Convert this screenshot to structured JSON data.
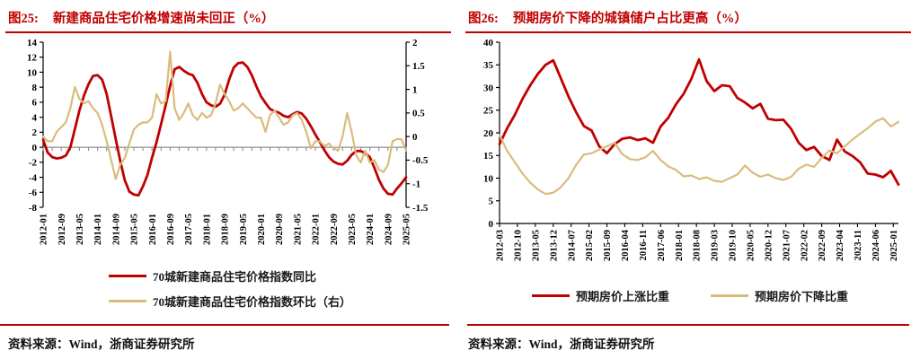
{
  "theme": {
    "accent_red": "#c00000",
    "series_red": "#c00000",
    "series_tan": "#d9bc7c",
    "zero_line_gray": "#8f8f8f",
    "text_black": "#1a1a1a"
  },
  "figures": [
    {
      "label": "图25:",
      "title": "新建商品住宅价格增速尚未回正（%）",
      "source": "资料来源：Wind，浙商证券研究所"
    },
    {
      "label": "图26:",
      "title": "预期房价下降的城镇储户占比更高（%）",
      "source": "资料来源：Wind，浙商证券研究所"
    }
  ],
  "chart_data": [
    {
      "type": "line",
      "title": "新建商品住宅价格增速尚未回正（%）",
      "x_start": "2012-01",
      "x_total_months": 160,
      "sample_step_months": 2,
      "x_tick_interval_months": 8,
      "x_tick_labels": [
        "2012-01",
        "2012-09",
        "2013-05",
        "2014-01",
        "2014-09",
        "2015-05",
        "2016-01",
        "2016-09",
        "2017-05",
        "2018-01",
        "2018-09",
        "2019-05",
        "2020-01",
        "2020-09",
        "2021-05",
        "2022-01",
        "2022-09",
        "2023-05",
        "2024-01",
        "2024-09",
        "2025-05"
      ],
      "y_left": {
        "min": -8,
        "max": 14,
        "tick_labels": [
          "14",
          "12",
          "10",
          "8",
          "6",
          "4",
          "2",
          "0",
          "-2",
          "-4",
          "-6",
          "-8"
        ]
      },
      "y_right": {
        "min": -1.5,
        "max": 2,
        "tick_labels": [
          "2",
          "1.5",
          "1",
          "0.5",
          "0",
          "-0.5",
          "-1",
          "-1.5"
        ]
      },
      "x_axis_at_left_value": 0,
      "series": [
        {
          "name": "70城新建商品住宅价格指数同比",
          "color": "#c00000",
          "axis": "left",
          "values": [
            1.0,
            -0.7,
            -1.3,
            -1.5,
            -1.4,
            -1.1,
            0.0,
            2.4,
            4.9,
            6.9,
            8.4,
            9.5,
            9.6,
            9.0,
            7.1,
            4.1,
            1.1,
            -1.8,
            -4.4,
            -5.9,
            -6.3,
            -6.4,
            -5.2,
            -3.7,
            -1.4,
            0.7,
            3.1,
            5.6,
            8.2,
            10.4,
            10.7,
            10.2,
            9.8,
            9.6,
            8.6,
            7.1,
            6.0,
            5.6,
            5.4,
            5.8,
            7.0,
            9.0,
            10.6,
            11.2,
            11.3,
            10.7,
            9.6,
            8.1,
            6.8,
            5.9,
            5.1,
            4.8,
            4.6,
            4.2,
            4.0,
            4.4,
            4.7,
            4.5,
            3.8,
            2.8,
            1.7,
            0.7,
            -0.4,
            -1.3,
            -1.9,
            -2.2,
            -2.3,
            -1.8,
            -1.0,
            -0.5,
            -0.5,
            -0.8,
            -1.3,
            -2.7,
            -4.3,
            -5.5,
            -6.2,
            -6.3,
            -5.5,
            -4.8,
            -4.0
          ]
        },
        {
          "name": "70城新建商品住宅价格指数环比（右）",
          "color": "#d9bc7c",
          "axis": "right",
          "values": [
            0.0,
            -0.1,
            -0.1,
            0.1,
            0.2,
            0.3,
            0.6,
            1.05,
            0.8,
            0.7,
            0.75,
            0.6,
            0.5,
            0.25,
            -0.1,
            -0.5,
            -0.9,
            -0.6,
            -0.45,
            -0.15,
            0.15,
            0.25,
            0.3,
            0.3,
            0.4,
            0.9,
            0.7,
            0.75,
            1.8,
            0.6,
            0.35,
            0.5,
            0.7,
            0.45,
            0.35,
            0.5,
            0.4,
            0.45,
            0.7,
            1.1,
            0.9,
            0.75,
            0.55,
            0.6,
            0.7,
            0.6,
            0.5,
            0.4,
            0.4,
            0.1,
            0.45,
            0.55,
            0.4,
            0.25,
            0.3,
            0.45,
            0.5,
            0.35,
            0.1,
            -0.25,
            -0.1,
            -0.1,
            -0.2,
            -0.15,
            -0.25,
            -0.3,
            0.0,
            0.5,
            0.1,
            -0.4,
            -0.55,
            -0.3,
            -0.55,
            -0.5,
            -0.7,
            -0.75,
            -0.6,
            -0.1,
            -0.05,
            -0.06,
            -0.3
          ]
        }
      ]
    },
    {
      "type": "line",
      "title": "预期房价下降的城镇储户占比更高（%）",
      "x_start": "2012-03",
      "x_total_months": 156,
      "sample_step_months": 3,
      "x_tick_interval_months": 7,
      "x_tick_labels": [
        "2012-03",
        "2012-10",
        "2013-05",
        "2013-12",
        "2014-07",
        "2015-02",
        "2015-09",
        "2016-04",
        "2016-11",
        "2017-06",
        "2018-01",
        "2018-08",
        "2019-03",
        "2019-10",
        "2020-05",
        "2020-12",
        "2021-07",
        "2022-02",
        "2022-09",
        "2023-04",
        "2023-11",
        "2024-06",
        "2025-01"
      ],
      "y_left": {
        "min": 0,
        "max": 40,
        "tick_labels": [
          "40",
          "35",
          "30",
          "25",
          "20",
          "15",
          "10",
          "5",
          "0"
        ]
      },
      "x_axis_at_left_value": 0,
      "series": [
        {
          "name": "预期房价上涨比重",
          "color": "#c00000",
          "axis": "left",
          "values": [
            17.5,
            21.0,
            24.0,
            27.5,
            30.5,
            33.0,
            35.0,
            36.0,
            32.0,
            28.0,
            24.5,
            21.5,
            20.5,
            17.0,
            15.5,
            17.5,
            18.7,
            19.0,
            18.4,
            18.8,
            17.8,
            21.4,
            23.3,
            26.3,
            28.6,
            31.9,
            36.2,
            31.4,
            29.2,
            30.5,
            30.3,
            27.7,
            26.7,
            25.4,
            26.4,
            23.1,
            22.8,
            22.9,
            20.9,
            17.8,
            16.2,
            16.9,
            14.9,
            14.0,
            18.5,
            15.9,
            14.9,
            13.5,
            11.0,
            10.8,
            10.2,
            11.6,
            8.6
          ]
        },
        {
          "name": "预期房价下降比重",
          "color": "#d9bc7c",
          "axis": "left",
          "values": [
            19.5,
            16.0,
            13.5,
            11.0,
            9.0,
            7.5,
            6.5,
            6.8,
            8.0,
            10.0,
            13.0,
            15.2,
            15.5,
            16.3,
            17.0,
            17.8,
            15.3,
            14.2,
            14.0,
            14.6,
            16.0,
            14.0,
            12.6,
            11.8,
            10.4,
            10.6,
            9.8,
            10.2,
            9.4,
            9.2,
            10.0,
            10.8,
            12.8,
            11.2,
            10.3,
            10.8,
            10.0,
            9.6,
            10.3,
            12.1,
            13.0,
            12.5,
            14.5,
            16.1,
            15.5,
            17.0,
            18.5,
            19.8,
            21.0,
            22.5,
            23.2,
            21.4,
            22.4
          ]
        }
      ]
    }
  ]
}
